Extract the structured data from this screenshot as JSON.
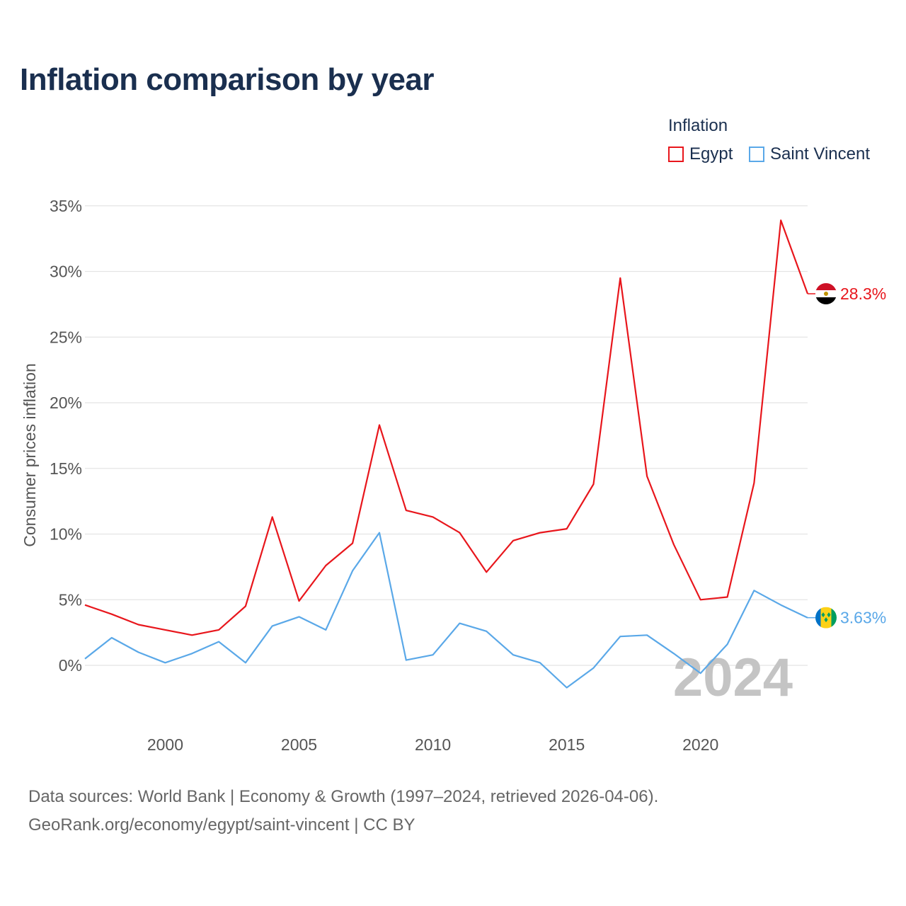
{
  "title": "Inflation comparison by year",
  "legend": {
    "title": "Inflation",
    "items": [
      {
        "name": "Egypt",
        "color": "#e8161c"
      },
      {
        "name": "Saint Vincent",
        "color": "#5aa8e8"
      }
    ]
  },
  "source": {
    "line1": "Data sources: World Bank | Economy & Growth (1997–2024, retrieved 2026-04-06).",
    "line2": "GeoRank.org/economy/egypt/saint-vincent | CC BY"
  },
  "chart_data": {
    "type": "line",
    "title": "Inflation comparison by year",
    "ylabel": "Consumer prices inflation",
    "xlabel": "",
    "x": [
      1997,
      1998,
      1999,
      2000,
      2001,
      2002,
      2003,
      2004,
      2005,
      2006,
      2007,
      2008,
      2009,
      2010,
      2011,
      2012,
      2013,
      2014,
      2015,
      2016,
      2017,
      2018,
      2019,
      2020,
      2021,
      2022,
      2023,
      2024
    ],
    "xlim": [
      1997,
      2024
    ],
    "ylim": [
      -3.5,
      35
    ],
    "yticks": [
      0,
      5,
      10,
      15,
      20,
      25,
      30,
      35
    ],
    "ytick_labels": [
      "0%",
      "5%",
      "10%",
      "15%",
      "20%",
      "25%",
      "30%",
      "35%"
    ],
    "xticks": [
      2000,
      2005,
      2010,
      2015,
      2020
    ],
    "xtick_labels": [
      "2000",
      "2005",
      "2010",
      "2015",
      "2020"
    ],
    "year_watermark": "2024",
    "series": [
      {
        "name": "Egypt",
        "color": "#e8161c",
        "end_label": "28.3%",
        "values": [
          4.6,
          3.9,
          3.1,
          2.7,
          2.3,
          2.7,
          4.5,
          11.3,
          4.9,
          7.6,
          9.3,
          18.3,
          11.8,
          11.3,
          10.1,
          7.1,
          9.5,
          10.1,
          10.4,
          13.8,
          29.5,
          14.4,
          9.2,
          5.0,
          5.2,
          13.9,
          33.9,
          28.3
        ]
      },
      {
        "name": "Saint Vincent",
        "color": "#5aa8e8",
        "end_label": "3.63%",
        "values": [
          0.5,
          2.1,
          1.0,
          0.2,
          0.9,
          1.8,
          0.2,
          3.0,
          3.7,
          2.7,
          7.2,
          10.1,
          0.4,
          0.8,
          3.2,
          2.6,
          0.8,
          0.2,
          -1.7,
          -0.2,
          2.2,
          2.3,
          0.9,
          -0.6,
          1.6,
          5.7,
          4.6,
          3.63
        ]
      }
    ]
  }
}
